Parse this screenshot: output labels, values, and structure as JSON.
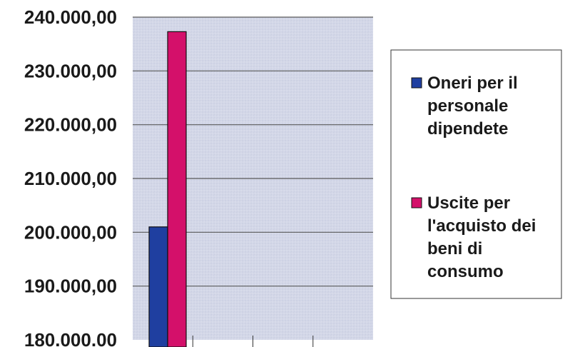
{
  "chart_data": {
    "type": "bar",
    "title": "",
    "xlabel": "",
    "ylabel": "",
    "ylim": [
      180000,
      240000
    ],
    "y_ticks": [
      {
        "value": 240000,
        "label": "240.000,00"
      },
      {
        "value": 230000,
        "label": "230.000,00"
      },
      {
        "value": 220000,
        "label": "220.000,00"
      },
      {
        "value": 210000,
        "label": "210.000,00"
      },
      {
        "value": 200000,
        "label": "200.000,00"
      },
      {
        "value": 190000,
        "label": "190.000,00"
      },
      {
        "value": 180000,
        "label": "180.000.00"
      }
    ],
    "grid": true,
    "legend_position": "right",
    "series": [
      {
        "name_lines": [
          "Oneri per il",
          "personale",
          "dipendete"
        ],
        "values": [
          201000
        ],
        "color": "#1f3fa0"
      },
      {
        "name_lines": [
          "Uscite per",
          "l'acquisto dei",
          "beni di",
          "consumo"
        ],
        "values": [
          237300
        ],
        "color": "#d4106a"
      }
    ],
    "colors": {
      "plot_background": "#d2d6e6",
      "gridline": "#5a5a5a"
    }
  }
}
